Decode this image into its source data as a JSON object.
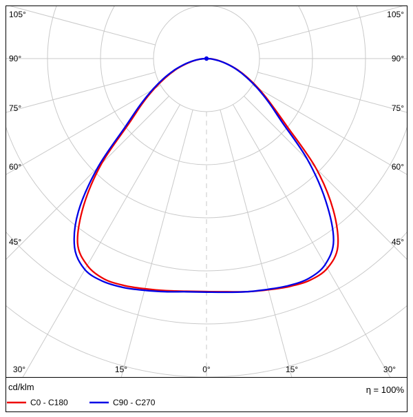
{
  "footer": {
    "units_label": "cd/klm",
    "efficiency_text": "η = 100%"
  },
  "chart_data": {
    "type": "polar",
    "subtype": "luminous-intensity-distribution",
    "units": "cd/klm",
    "efficiency": "100%",
    "angle_axis": {
      "ray_step_deg": 15,
      "max_ray_deg": 105,
      "left_labels": [
        "105°",
        "90°",
        "75°",
        "60°",
        "45°"
      ],
      "right_labels": [
        "105°",
        "90°",
        "75°",
        "60°",
        "45°"
      ],
      "bottom_labels": [
        "30°",
        "15°",
        "0°",
        "15°",
        "30°"
      ]
    },
    "radial_axis": {
      "ring_count": 6,
      "ring_step_cd_per_klm": 100,
      "ring_values": [
        100,
        200,
        300,
        400,
        500,
        600
      ],
      "rings_labeled": false
    },
    "gamma_deg": [
      -90,
      -85,
      -80,
      -75,
      -70,
      -65,
      -60,
      -55,
      -50,
      -45,
      -40,
      -35,
      -30,
      -25,
      -20,
      -15,
      -10,
      -5,
      0,
      5,
      10,
      15,
      20,
      25,
      30,
      35,
      40,
      45,
      50,
      55,
      60,
      65,
      70,
      75,
      80,
      85,
      90
    ],
    "series": [
      {
        "name": "C0 - C180",
        "color": "#ee0000",
        "cd_per_klm": [
          1,
          12,
          25,
          42,
          63,
          86,
          114,
          148,
          192,
          280,
          360,
          424,
          450,
          458,
          455,
          449,
          444,
          440,
          439,
          441,
          446,
          451,
          457,
          461,
          456,
          432,
          372,
          292,
          198,
          148,
          114,
          86,
          63,
          42,
          25,
          12,
          1
        ]
      },
      {
        "name": "C90 - C270",
        "color": "#0000e6",
        "cd_per_klm": [
          1,
          13,
          27,
          45,
          66,
          90,
          118,
          153,
          200,
          290,
          376,
          434,
          459,
          463,
          459,
          452,
          446,
          441,
          440,
          442,
          446,
          450,
          455,
          457,
          448,
          418,
          350,
          270,
          186,
          143,
          110,
          83,
          61,
          41,
          24,
          11,
          1
        ]
      }
    ],
    "grid_color": "#c9c9c9",
    "border_color": "#000000"
  }
}
